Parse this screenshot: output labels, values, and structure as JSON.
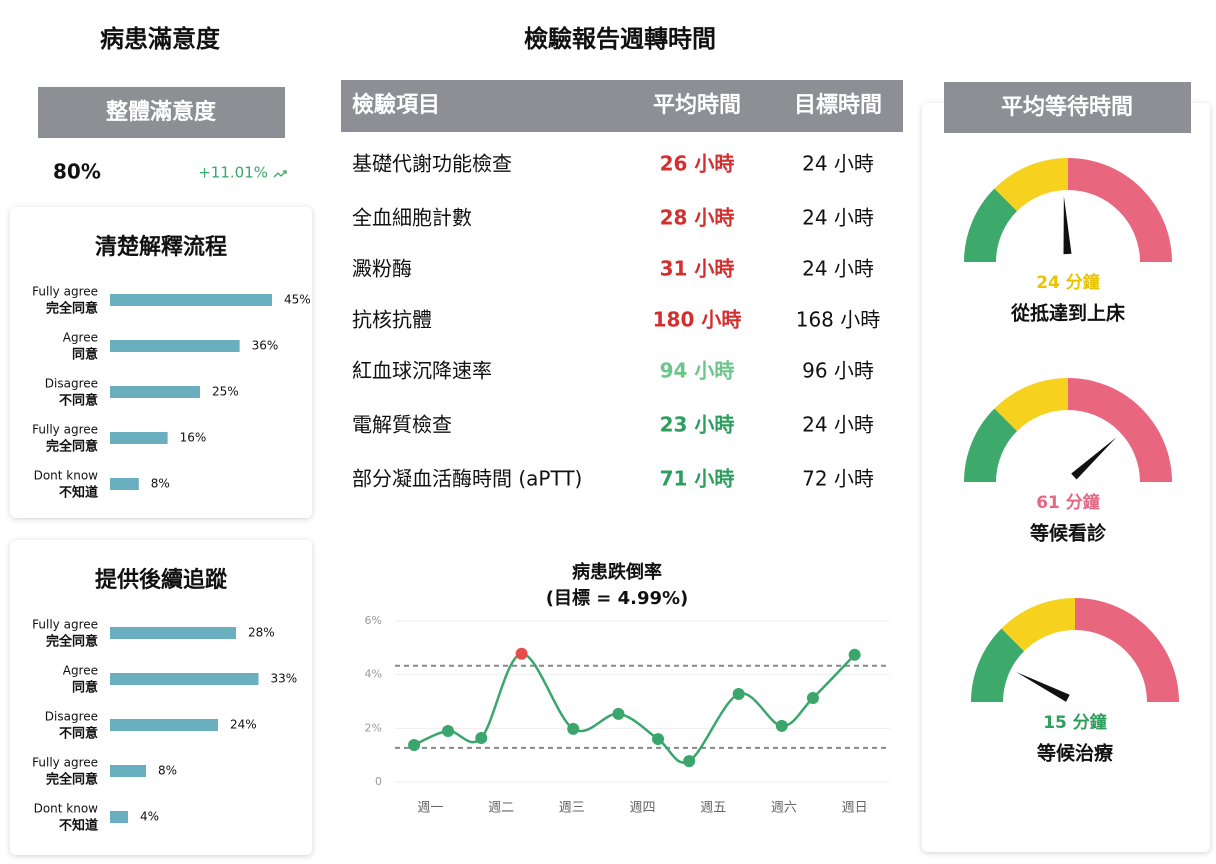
{
  "satisfaction": {
    "title": "病患滿意度",
    "overall_label": "整體滿意度",
    "overall_value": "80%",
    "change": "+11.01%"
  },
  "table": {
    "title": "檢驗報告週轉時間",
    "header": [
      "檢驗項目",
      "平均時間",
      "目標時間"
    ],
    "rows": [
      [
        "基礎代謝功能檢查",
        "26 小時",
        "24 小時"
      ],
      [
        "全血細胞計數",
        "28 小時",
        "24 小時"
      ],
      [
        "澱粉酶",
        "31 小時",
        "24 小時"
      ],
      [
        "抗核抗體",
        "180 小時",
        "168 小時"
      ],
      [
        "紅血球沉降速率",
        "94 小時",
        "96 小時"
      ],
      [
        "電解質檢查",
        "23 小時",
        "24 小時"
      ],
      [
        "部分凝血活酶時間 (aPTT)",
        "71 小時",
        "72 小時"
      ]
    ],
    "avg_colors": [
      "#d32f2f",
      "#d32f2f",
      "#d32f2f",
      "#d32f2f",
      "#6cc58a",
      "#2e9e5e",
      "#2e9e5e"
    ]
  },
  "wait_title": "平均等待時間",
  "chart_data": [
    {
      "type": "bar",
      "orientation": "horizontal",
      "title": "清楚解釋流程",
      "categories": [
        [
          "Fully agree",
          "完全同意"
        ],
        [
          "Agree",
          "同意"
        ],
        [
          "Disagree",
          "不同意"
        ],
        [
          "Fully agree",
          "完全同意"
        ],
        [
          "Dont know",
          "不知道"
        ]
      ],
      "values": [
        45,
        36,
        25,
        16,
        8
      ],
      "value_labels": [
        "45%",
        "36%",
        "25%",
        "16%",
        "8%"
      ],
      "xlim": [
        0,
        50
      ],
      "color": "#6aafbf"
    },
    {
      "type": "bar",
      "orientation": "horizontal",
      "title": "提供後續追蹤",
      "categories": [
        [
          "Fully agree",
          "完全同意"
        ],
        [
          "Agree",
          "同意"
        ],
        [
          "Disagree",
          "不同意"
        ],
        [
          "Fully agree",
          "完全同意"
        ],
        [
          "Dont know",
          "不知道"
        ]
      ],
      "values": [
        28,
        33,
        24,
        8,
        4
      ],
      "value_labels": [
        "28%",
        "33%",
        "24%",
        "8%",
        "4%"
      ],
      "xlim": [
        0,
        40
      ],
      "color": "#6aafbf"
    },
    {
      "type": "line",
      "title": "病患跌倒率",
      "subtitle": "(目標 = 4.99%)",
      "x": [
        -0.23,
        0.25,
        0.72,
        1.29,
        2.02,
        2.66,
        3.22,
        3.66,
        4.36,
        4.97,
        5.41,
        6.0
      ],
      "xlim": [
        -0.5,
        6.5
      ],
      "xticks": [
        {
          "value": 0,
          "label": "週一"
        },
        {
          "value": 1,
          "label": "週二"
        },
        {
          "value": 2,
          "label": "週三"
        },
        {
          "value": 3,
          "label": "週四"
        },
        {
          "value": 4,
          "label": "週五"
        },
        {
          "value": 5,
          "label": "週六"
        },
        {
          "value": 6,
          "label": "週日"
        }
      ],
      "ylim": [
        0,
        6
      ],
      "yticks": [
        0,
        {
          "value": 2,
          "label": "2%"
        },
        {
          "value": 4,
          "label": "4%"
        },
        {
          "value": 6,
          "label": "6%"
        }
      ],
      "grid": true,
      "reference_lines": [
        4.33,
        1.27
      ],
      "series": [
        {
          "color": "#3aa66b",
          "values": [
            1.38,
            1.9,
            1.64,
            4.78,
            1.98,
            2.54,
            1.6,
            0.78,
            3.28,
            2.09,
            3.13,
            4.74
          ],
          "marker_colors": [
            "#3aa66b",
            "#3aa66b",
            "#3aa66b",
            "#e74c4c",
            "#3aa66b",
            "#3aa66b",
            "#3aa66b",
            "#3aa66b",
            "#3aa66b",
            "#3aa66b",
            "#3aa66b",
            "#3aa66b"
          ]
        }
      ]
    },
    {
      "type": "gauge",
      "categories": [
        "從抵達到上床",
        "等候看診",
        "等候治療"
      ],
      "values": [
        24,
        61,
        15
      ],
      "value_labels": [
        "24 分鐘",
        "61 分鐘",
        "15 分鐘"
      ],
      "value_colors": [
        "#e8c400",
        "#e06a82",
        "#2e9e5e"
      ],
      "ranges": [
        [
          0,
          50
        ],
        [
          0,
          80
        ],
        [
          0,
          100
        ]
      ],
      "band_colors": [
        "#3daa6b",
        "#f6d21e",
        "#e8677e"
      ]
    }
  ]
}
